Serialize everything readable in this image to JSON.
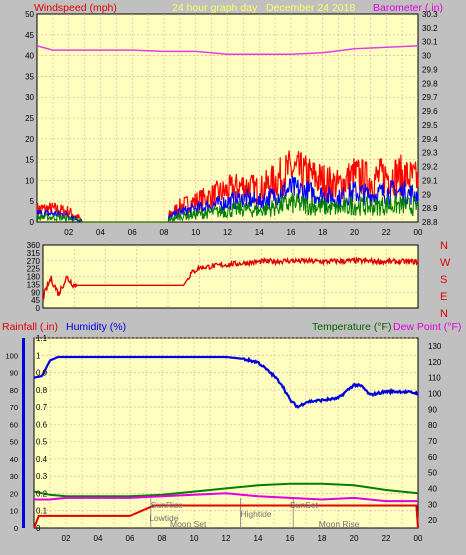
{
  "header": {
    "windspeed_label": "Windspeed (mph)",
    "title": "24 hour graph day",
    "date": "December 24 2018",
    "barometer_label": "Barometer (.in)"
  },
  "colors": {
    "background": "#c0c0c0",
    "plot_bg": "#ffffc0",
    "grid": "#e8a0a0",
    "wind_red": "#ff0000",
    "wind_blue": "#0000ff",
    "wind_green": "#008000",
    "barometer": "#e040e0",
    "direction": "#e00000",
    "rain": "#e00000",
    "humidity": "#0000e0",
    "temperature": "#008000",
    "dewpoint": "#e000e0",
    "title_yellow": "#ffff60"
  },
  "chart_data": [
    {
      "type": "line",
      "title": "24 hour graph day",
      "ylabel": "Windspeed (mph)",
      "y2label": "Barometer (.in)",
      "ylim": [
        0,
        50
      ],
      "y2lim": [
        28.8,
        30.3
      ],
      "xlim": [
        0,
        24
      ],
      "x_ticks": [
        "02",
        "04",
        "06",
        "08",
        "10",
        "12",
        "14",
        "16",
        "18",
        "20",
        "22",
        "00"
      ],
      "y_ticks": [
        0,
        5,
        10,
        15,
        20,
        25,
        30,
        35,
        40,
        45,
        50
      ],
      "y2_ticks": [
        "28.8",
        "28.9",
        "29",
        "29.1",
        "29.2",
        "29.3",
        "29.4",
        "29.5",
        "29.6",
        "29.7",
        "29.8",
        "29.9",
        "30",
        "30.1",
        "30.2",
        "30.3"
      ],
      "grid": true,
      "series": [
        {
          "name": "Windspeed (mph)",
          "x": [
            0,
            1,
            2,
            3,
            4,
            5,
            6,
            7,
            8,
            9,
            10,
            11,
            12,
            13,
            14,
            15,
            16,
            17,
            18,
            19,
            20,
            21,
            22,
            23,
            24
          ],
          "values": [
            2.5,
            2.5,
            2,
            0,
            0,
            0,
            0,
            0,
            0.5,
            3,
            4,
            5,
            6,
            7,
            6,
            8,
            10,
            9,
            8,
            7,
            9,
            8,
            9,
            9,
            8
          ]
        },
        {
          "name": "Barometer (.in)",
          "x": [
            0,
            1,
            2,
            4,
            6,
            8,
            10,
            12,
            14,
            16,
            18,
            20,
            22,
            24
          ],
          "values": [
            30.07,
            30.04,
            30.04,
            30.04,
            30.04,
            30.03,
            30.03,
            30.01,
            30.01,
            30.01,
            30.02,
            30.05,
            30.06,
            30.07
          ]
        }
      ]
    },
    {
      "type": "scatter",
      "title": "",
      "ylim": [
        0,
        360
      ],
      "xlim": [
        0,
        24
      ],
      "y_ticks": [
        0,
        45,
        90,
        135,
        180,
        225,
        270,
        315,
        360
      ],
      "compass": [
        "N",
        "W",
        "S",
        "E",
        "N"
      ],
      "series": [
        {
          "name": "Wind direction",
          "x": [
            0,
            0.5,
            1,
            1.5,
            2,
            4,
            6,
            8,
            9,
            9.5,
            10,
            12,
            14,
            16,
            18,
            20,
            22,
            24
          ],
          "values": [
            60,
            170,
            80,
            175,
            130,
            130,
            130,
            130,
            130,
            200,
            230,
            250,
            265,
            270,
            265,
            270,
            265,
            265
          ]
        }
      ]
    },
    {
      "type": "line",
      "title": "",
      "ylim": [
        0,
        1.1
      ],
      "ylabels_left": [
        "Rainfall (.in)",
        "Humidity (%)"
      ],
      "ylabels_right": [
        "Temperature (°F)",
        "Dew Point (°F)"
      ],
      "y_ticks_rain": [
        "0",
        "0.1",
        "0.2",
        "0.3",
        "0.4",
        "0.5",
        "0.6",
        "0.7",
        "0.8",
        "0.9",
        "1",
        "1.1"
      ],
      "y_ticks_humidity": [
        0,
        10,
        20,
        30,
        40,
        50,
        60,
        70,
        80,
        90,
        100
      ],
      "y_ticks_temp": [
        20,
        30,
        40,
        50,
        60,
        70,
        80,
        90,
        100,
        110,
        120,
        130
      ],
      "grid": true,
      "series": [
        {
          "name": "Rainfall (.in)",
          "x": [
            0,
            0.3,
            6,
            7.5,
            12,
            16,
            20,
            22,
            23.9,
            24
          ],
          "values": [
            0,
            0.07,
            0.07,
            0.13,
            0.13,
            0.13,
            0.13,
            0.13,
            0.13,
            0
          ]
        },
        {
          "name": "Humidity (%)",
          "x": [
            0,
            0.5,
            1,
            1.5,
            2,
            4,
            6,
            8,
            10,
            12,
            13,
            14,
            15,
            15.5,
            16,
            16.5,
            17,
            18,
            19,
            20,
            20.5,
            21,
            22,
            23,
            24
          ],
          "values": [
            87,
            88,
            97,
            99,
            99,
            99,
            99,
            99,
            99,
            99,
            98,
            96,
            88,
            83,
            74,
            70,
            73,
            74,
            75,
            83,
            82,
            77,
            79,
            79,
            78
          ]
        },
        {
          "name": "Temperature (°F)",
          "x": [
            0,
            1,
            2,
            4,
            6,
            8,
            10,
            12,
            14,
            16,
            18,
            20,
            22,
            24
          ],
          "values": [
            38,
            36,
            35,
            35,
            35,
            36,
            38,
            40,
            42,
            43,
            43,
            42,
            39,
            37
          ]
        },
        {
          "name": "Dew Point (°F)",
          "x": [
            0,
            1,
            2,
            4,
            6,
            8,
            10,
            12,
            14,
            16,
            18,
            20,
            22,
            24
          ],
          "values": [
            33,
            33,
            34,
            34,
            34,
            35,
            36,
            37,
            35,
            34,
            33,
            34,
            32,
            32
          ]
        }
      ],
      "annotations": [
        "SunRise",
        "Lowtide",
        "Moon Set",
        "Hightide",
        "SunSet",
        "Moon Rise"
      ]
    }
  ]
}
